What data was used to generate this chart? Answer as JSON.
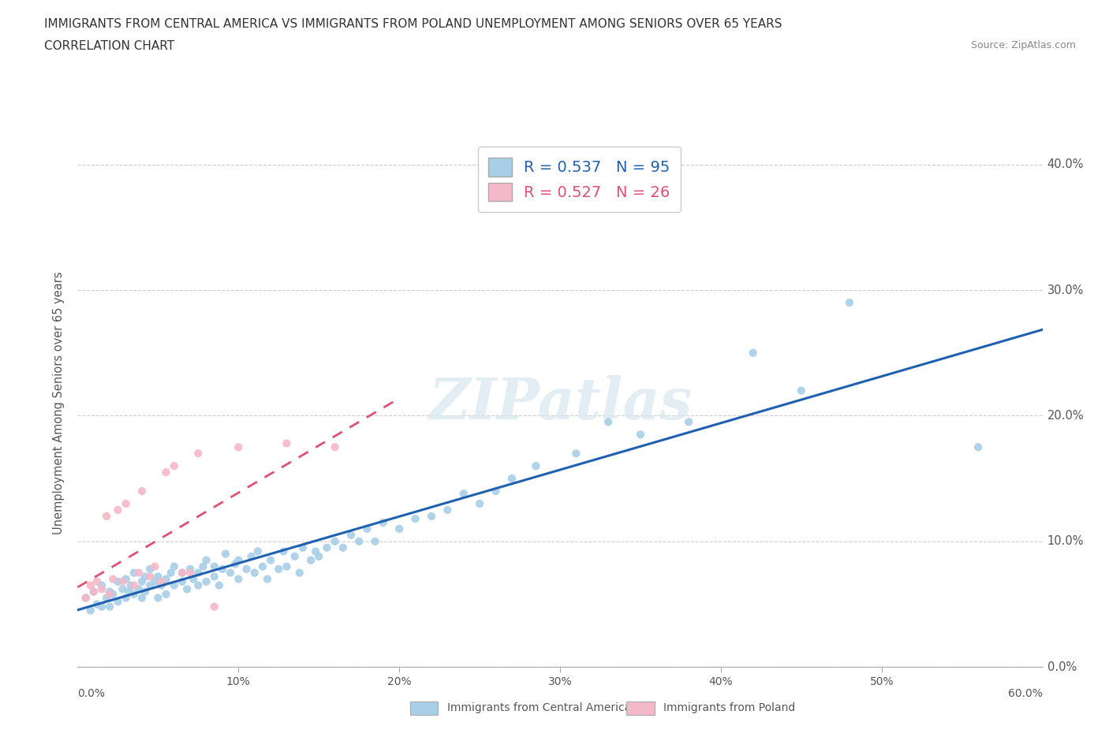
{
  "title_line1": "IMMIGRANTS FROM CENTRAL AMERICA VS IMMIGRANTS FROM POLAND UNEMPLOYMENT AMONG SENIORS OVER 65 YEARS",
  "title_line2": "CORRELATION CHART",
  "source": "Source: ZipAtlas.com",
  "ylabel": "Unemployment Among Seniors over 65 years",
  "xmin": 0.0,
  "xmax": 0.6,
  "ymin": 0.0,
  "ymax": 0.42,
  "r_blue": 0.537,
  "n_blue": 95,
  "r_pink": 0.527,
  "n_pink": 26,
  "blue_color": "#a8cfe8",
  "pink_color": "#f4b8c8",
  "blue_line_color": "#2060b0",
  "pink_line_color": "#e05070",
  "legend_label_blue": "Immigrants from Central America",
  "legend_label_pink": "Immigrants from Poland",
  "watermark": "ZIPatlas",
  "blue_scatter_x": [
    0.005,
    0.008,
    0.01,
    0.012,
    0.015,
    0.015,
    0.018,
    0.02,
    0.02,
    0.022,
    0.025,
    0.025,
    0.028,
    0.03,
    0.03,
    0.032,
    0.033,
    0.035,
    0.035,
    0.038,
    0.04,
    0.04,
    0.042,
    0.042,
    0.045,
    0.045,
    0.048,
    0.05,
    0.05,
    0.052,
    0.055,
    0.055,
    0.058,
    0.06,
    0.06,
    0.065,
    0.065,
    0.068,
    0.07,
    0.072,
    0.075,
    0.075,
    0.078,
    0.08,
    0.08,
    0.085,
    0.085,
    0.088,
    0.09,
    0.092,
    0.095,
    0.098,
    0.1,
    0.1,
    0.105,
    0.108,
    0.11,
    0.112,
    0.115,
    0.118,
    0.12,
    0.125,
    0.128,
    0.13,
    0.135,
    0.138,
    0.14,
    0.145,
    0.148,
    0.15,
    0.155,
    0.16,
    0.165,
    0.17,
    0.175,
    0.18,
    0.185,
    0.19,
    0.2,
    0.21,
    0.22,
    0.23,
    0.24,
    0.25,
    0.26,
    0.27,
    0.285,
    0.31,
    0.33,
    0.35,
    0.38,
    0.42,
    0.45,
    0.48,
    0.56
  ],
  "blue_scatter_y": [
    0.055,
    0.045,
    0.06,
    0.05,
    0.065,
    0.048,
    0.055,
    0.06,
    0.048,
    0.058,
    0.052,
    0.068,
    0.062,
    0.055,
    0.07,
    0.06,
    0.065,
    0.058,
    0.075,
    0.062,
    0.068,
    0.055,
    0.072,
    0.06,
    0.065,
    0.078,
    0.068,
    0.055,
    0.072,
    0.065,
    0.07,
    0.058,
    0.075,
    0.065,
    0.08,
    0.068,
    0.075,
    0.062,
    0.078,
    0.07,
    0.075,
    0.065,
    0.08,
    0.068,
    0.085,
    0.072,
    0.08,
    0.065,
    0.078,
    0.09,
    0.075,
    0.082,
    0.07,
    0.085,
    0.078,
    0.088,
    0.075,
    0.092,
    0.08,
    0.07,
    0.085,
    0.078,
    0.092,
    0.08,
    0.088,
    0.075,
    0.095,
    0.085,
    0.092,
    0.088,
    0.095,
    0.1,
    0.095,
    0.105,
    0.1,
    0.11,
    0.1,
    0.115,
    0.11,
    0.118,
    0.12,
    0.125,
    0.138,
    0.13,
    0.14,
    0.15,
    0.16,
    0.17,
    0.195,
    0.185,
    0.195,
    0.25,
    0.22,
    0.29,
    0.175
  ],
  "pink_scatter_x": [
    0.005,
    0.008,
    0.01,
    0.012,
    0.015,
    0.018,
    0.02,
    0.022,
    0.025,
    0.028,
    0.03,
    0.035,
    0.038,
    0.04,
    0.045,
    0.048,
    0.052,
    0.055,
    0.06,
    0.065,
    0.07,
    0.075,
    0.085,
    0.1,
    0.13,
    0.16
  ],
  "pink_scatter_y": [
    0.055,
    0.065,
    0.06,
    0.068,
    0.062,
    0.12,
    0.058,
    0.07,
    0.125,
    0.068,
    0.13,
    0.065,
    0.075,
    0.14,
    0.072,
    0.08,
    0.068,
    0.155,
    0.16,
    0.075,
    0.075,
    0.17,
    0.048,
    0.175,
    0.178,
    0.175
  ]
}
